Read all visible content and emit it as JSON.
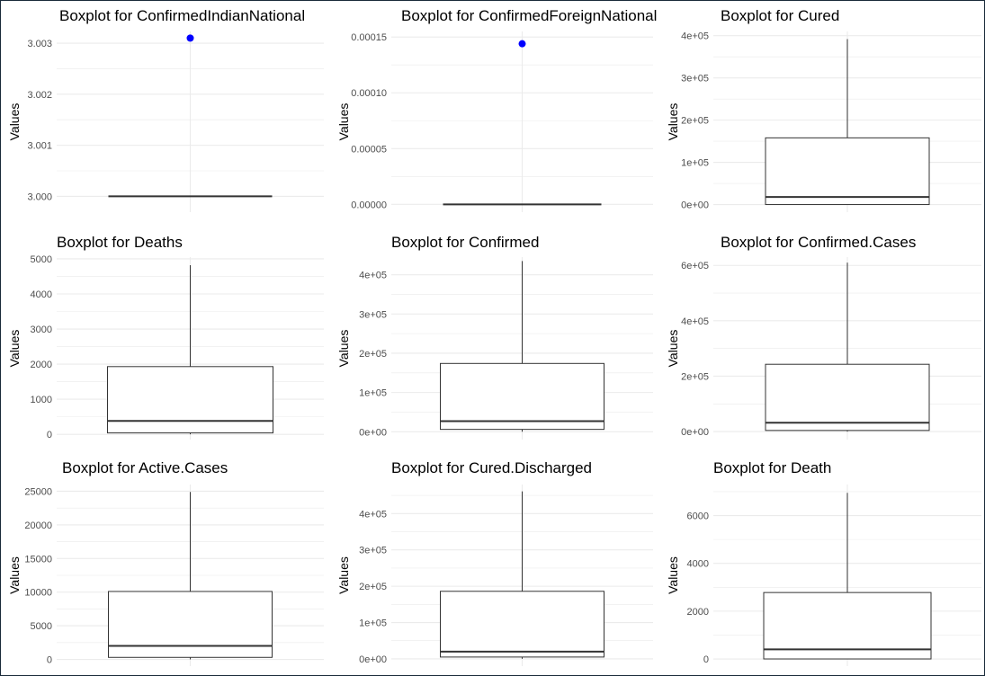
{
  "chart_data": [
    {
      "type": "boxplot",
      "title": "Boxplot for ConfirmedIndianNational",
      "ylabel": "Values",
      "ylim": [
        2.99969,
        3.00323
      ],
      "yticks": [
        3.0,
        3.001,
        3.002,
        3.003
      ],
      "ytick_labels": [
        "3.000",
        "3.001",
        "3.002",
        "3.003"
      ],
      "box": {
        "min": 3.0,
        "q1": 3.0,
        "median": 3.0,
        "q3": 3.0,
        "max": 3.0
      },
      "outliers": [
        3.0031
      ],
      "grid": true
    },
    {
      "type": "boxplot",
      "title": "Boxplot for ConfirmedForeignNational",
      "ylabel": "Values",
      "ylim": [
        -7e-06,
        0.000155
      ],
      "yticks": [
        0,
        5e-05,
        0.0001,
        0.00015
      ],
      "ytick_labels": [
        "0.00000",
        "0.00005",
        "0.00010",
        "0.00015"
      ],
      "box": {
        "min": 0,
        "q1": 0,
        "median": 0,
        "q3": 0,
        "max": 0
      },
      "outliers": [
        0.000144
      ],
      "grid": true
    },
    {
      "type": "boxplot",
      "title": "Boxplot for Cured",
      "ylabel": "Values",
      "ylim": [
        -18000,
        410000
      ],
      "yticks": [
        0,
        100000,
        200000,
        300000,
        400000
      ],
      "ytick_labels": [
        "0e+00",
        "1e+05",
        "2e+05",
        "3e+05",
        "4e+05"
      ],
      "box": {
        "min": 0,
        "q1": 0,
        "median": 18000,
        "q3": 158000,
        "max": 392000
      },
      "outliers": [],
      "grid": true
    },
    {
      "type": "boxplot",
      "title": "Boxplot for Deaths",
      "ylabel": "Values",
      "ylim": [
        -150,
        5050
      ],
      "yticks": [
        0,
        1000,
        2000,
        3000,
        4000,
        5000
      ],
      "ytick_labels": [
        "0",
        "1000",
        "2000",
        "3000",
        "4000",
        "5000"
      ],
      "box": {
        "min": 0,
        "q1": 40,
        "median": 380,
        "q3": 1930,
        "max": 4820
      },
      "outliers": [],
      "grid": true
    },
    {
      "type": "boxplot",
      "title": "Boxplot for Confirmed",
      "ylabel": "Values",
      "ylim": [
        -20000,
        445000
      ],
      "yticks": [
        0,
        100000,
        200000,
        300000,
        400000
      ],
      "ytick_labels": [
        "0e+00",
        "1e+05",
        "2e+05",
        "3e+05",
        "4e+05"
      ],
      "box": {
        "min": 0,
        "q1": 6000,
        "median": 27000,
        "q3": 174000,
        "max": 435000
      },
      "outliers": [],
      "grid": true
    },
    {
      "type": "boxplot",
      "title": "Boxplot for Confirmed.Cases",
      "ylabel": "Values",
      "ylim": [
        -29000,
        630000
      ],
      "yticks": [
        0,
        200000,
        400000,
        600000
      ],
      "ytick_labels": [
        "0e+00",
        "2e+05",
        "4e+05",
        "6e+05"
      ],
      "box": {
        "min": 0,
        "q1": 4000,
        "median": 32000,
        "q3": 243000,
        "max": 610000
      },
      "outliers": [],
      "grid": true
    },
    {
      "type": "boxplot",
      "title": "Boxplot for Active.Cases",
      "ylabel": "Values",
      "ylim": [
        -1000,
        26000
      ],
      "yticks": [
        0,
        5000,
        10000,
        15000,
        20000,
        25000
      ],
      "ytick_labels": [
        "0",
        "5000",
        "10000",
        "15000",
        "20000",
        "25000"
      ],
      "box": {
        "min": 0,
        "q1": 300,
        "median": 2000,
        "q3": 10100,
        "max": 24900
      },
      "outliers": [],
      "grid": true
    },
    {
      "type": "boxplot",
      "title": "Boxplot for Cured.Discharged",
      "ylabel": "Values",
      "ylim": [
        -20000,
        480000
      ],
      "yticks": [
        0,
        100000,
        200000,
        300000,
        400000
      ],
      "ytick_labels": [
        "0e+00",
        "1e+05",
        "2e+05",
        "3e+05",
        "4e+05"
      ],
      "box": {
        "min": 0,
        "q1": 5000,
        "median": 20000,
        "q3": 186000,
        "max": 461000
      },
      "outliers": [],
      "grid": true
    },
    {
      "type": "boxplot",
      "title": "Boxplot for Death",
      "ylabel": "Values",
      "ylim": [
        -300,
        7300
      ],
      "yticks": [
        0,
        2000,
        4000,
        6000
      ],
      "ytick_labels": [
        "0",
        "2000",
        "4000",
        "6000"
      ],
      "box": {
        "min": 0,
        "q1": 0,
        "median": 400,
        "q3": 2780,
        "max": 6950
      },
      "outliers": [],
      "grid": true
    }
  ],
  "colors": {
    "box_stroke": "#333333",
    "grid": "#ebebeb",
    "outlier": "#0000ff",
    "whisker": "#333333"
  }
}
